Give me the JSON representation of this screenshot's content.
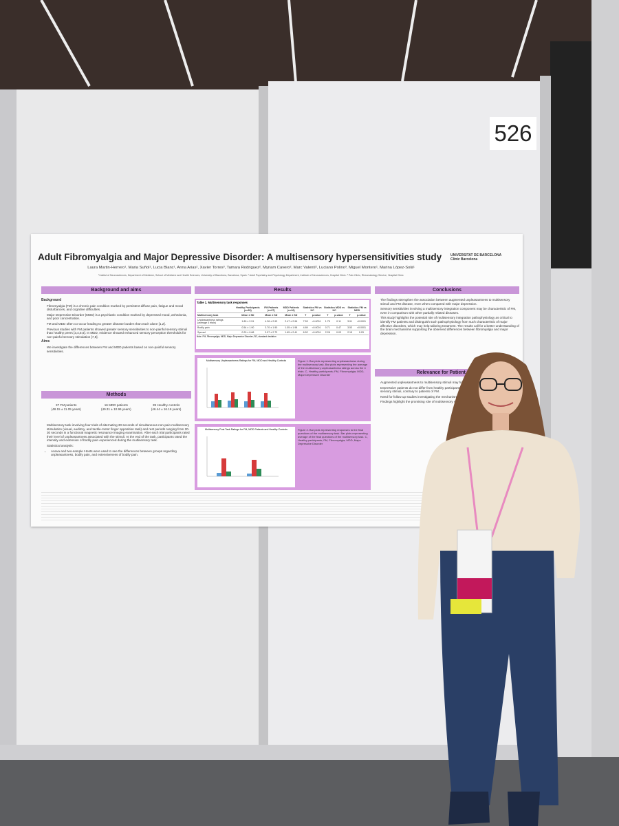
{
  "booth_number": "526",
  "poster": {
    "title": "Adult Fibromyalgia and Major Depressive Disorder: A multisensory hypersensitivities study",
    "authors": "Laura Martin-Herrero¹, Maria Suñol¹, Lucia Blanc¹, Anna Arias², Xavier Torres³, Tamara Rodriguez², Myriam Cavero², Marc Valentí², Luciano Polino³, Miguel Montero¹, Marina López-Solà¹",
    "affiliations": "¹Institut of Neurosciences, Department of Medicine, School of Medicine and Health Sciences, University of Barcelona, Barcelona, Spain. ² Adult Psychiatry and Psychology Department, Institute of Neurosciences, Hospital Clinic. ³ Pain Clinic, Rheumatology Service, Hospital Clinic",
    "logos": [
      "UNIVERSITAT DE BARCELONA",
      "Clínic Barcelona"
    ],
    "background": {
      "heading": "Background and aims",
      "subheading": "Background",
      "bullets": [
        "Fibromyalgia (FM) is a chronic pain condition marked by persistent diffuse pain, fatigue and mood disturbances, and cognitive difficulties.",
        "Major Depressive Disorder (MDD) is a psychiatric condition marked by depressed mood, anhedonia, and poor concentration.",
        "FM and MDD often co-occur leading to greater disease burden than each alone [1,2].",
        "Previous studies with FM patients showed greater sensory sensitivities to non-painful sensory stimuli than healthy peers [3,4,5,6]. In MDD, evidence showed enhanced sensory perception thresholds for non-painful sensory stimulation [7,8]."
      ],
      "aims_heading": "Aims",
      "aims": [
        "We investigate the differences between FM and MDD patients based on non-painful sensory sensitivities."
      ]
    },
    "methods": {
      "heading": "Methods",
      "groups": [
        {
          "label": "37 FM patients",
          "detail": "(48.15 ± 11.05 years)"
        },
        {
          "label": "16 MDD patients",
          "detail": "(49.31 ± 10.96 years)"
        },
        {
          "label": "39 Healthy controls",
          "detail": "(46.44 ± 16.16 years)"
        }
      ],
      "bullets": [
        "Multisensory task involving four trials of alternating 30 seconds of simultaneous non-pain multisensory stimulation (visual, auditory, and tactile-motor finger opposition task) and rest periods ranging from 20-30 seconds in a functional magnetic resonance imaging examination. After each trial participants rated their level of unpleasantness associated with the stimuli. At the end of the task, participants rated the intensity and extension of bodily pain experienced during the multisensory task.",
        "Statistical analysis:"
      ],
      "sub_bullets": [
        "Anova and two-sample t-tests were used to see the differences between groups regarding unpleasantness, bodily pain, and extensiveness of bodily pain."
      ]
    },
    "results": {
      "heading": "Results",
      "table": {
        "title": "Table 1. Multisensory task responses",
        "header": [
          "",
          "Healthy Participants (n=39)",
          "FM Patients (n=37)",
          "MDD Patients (n=16)",
          "Statistics FM vs HC",
          "Statistics MDD vs HC",
          "Statistics FM vs MDD"
        ],
        "subheader": [
          "Multisensory task",
          "Mean ± SD",
          "Mean ± SD",
          "Mean ± SD",
          "T",
          "p-value",
          "T",
          "p-value",
          "T",
          "p-value"
        ],
        "rows": [
          [
            "Unpleasantness ratings (average 4 trials)",
            "1.80 ± 2.51",
            "4.26 ± 2.93",
            "2.47 ± 2.96",
            "7.53",
            "<0.0001",
            "1.75",
            "0.11",
            "3.91",
            "<0.0001"
          ],
          [
            "Bodily pain",
            "0.54 ± 1.90",
            "3.70 ± 1.90",
            "1.05 ± 1.98",
            "4.89",
            "<0.0001",
            "0.71",
            "0.47",
            "3.53",
            "<0.0001"
          ],
          [
            "Spread",
            "0.29 ± 0.68",
            "3.57 ± 2.73",
            "1.65 ± 2.41",
            "6.52",
            "<0.0001",
            "2.28",
            "0.03",
            "2.15",
            "0.03"
          ]
        ],
        "note": "Note. FM, Fibromyalgia; MDD, Major Depressive Disorder; SD, standard deviation"
      },
      "figures": [
        {
          "chart_title": "Multisensory Unpleasantness Ratings for FM, MDD and Healthy Controls",
          "caption": "Figure 1. Bar plots representing unpleasantness during the multisensory task. Bar plots representing the average of the multisensory unpleasantness ratings across the 4 trials. C, Healthy participants; FM, Fibromyalgia; MDD, Major Depressive Disorder"
        },
        {
          "chart_title": "Multisensory Post Task Ratings for FM, MDD Patients and Healthy Controls",
          "caption": "Figure 2. Bar plots representing responses to the final questions of the multisensory task. Bar plots representing average of the final questions of the multisensory task. C, Healthy participants; FM, Fibromyalgia; MDD, Major Depressive Disorder"
        }
      ]
    },
    "conclusions": {
      "heading": "Conclusions",
      "bullets": [
        "The findings strengthen the association between augmented unpleasantness to multisensory stimuli and FM disease, even when compared with major depression.",
        "Sensory sensitivities involving a multisensory integration component may be characteristic of FM, even in comparison with other partially related diseases.",
        "This study highlights the potential role of multisensory integration pathophysiology as critical to identify FM patients and distinguish such pathophysiology from such characteristic of major affective disorders, which may help tailoring treatment. The results call for a better understanding of the brain mechanisms supporting the observed differences between fibromyalgia and major depression."
      ]
    },
    "relevance": {
      "heading": "Relevance for Patient Care",
      "bullets": [
        "Augmented unpleasantness to multisensory stimuli may have potential clinical implication.",
        "Depressive patients do not differ from healthy participants in multisensory integration of non-painful sensory stimuli, contrary to patients of FM.",
        "Need for follow up studies investigating the mechanisms underlying FM and MDD.",
        "Findings highlight the promising role of multisensory stimulation as a therapeutic target for FM."
      ]
    }
  }
}
